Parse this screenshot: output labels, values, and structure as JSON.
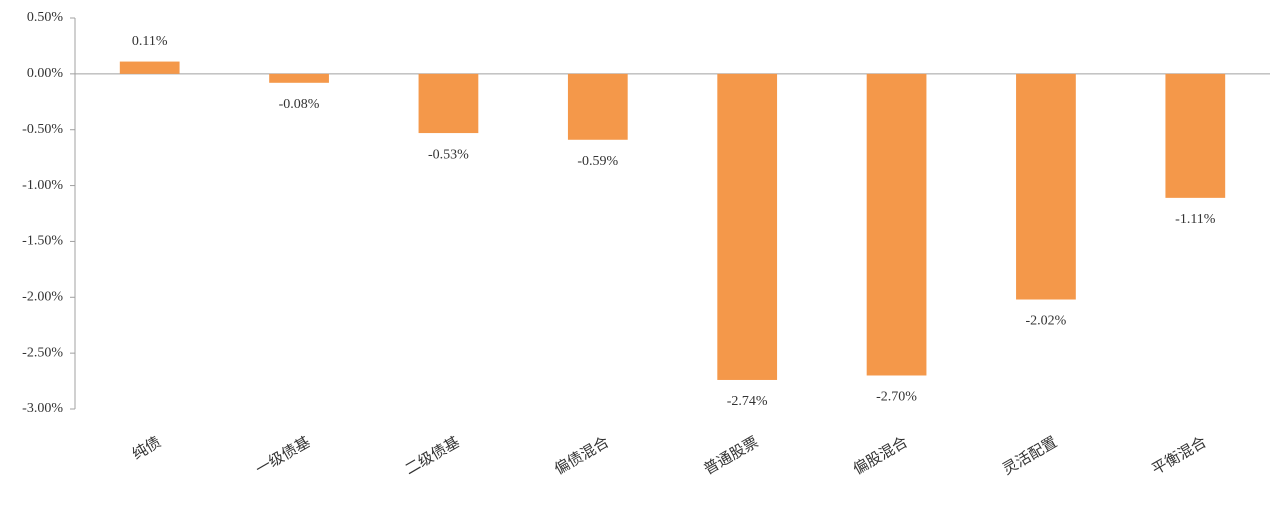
{
  "chart_data": {
    "type": "bar",
    "categories": [
      "纯债",
      "一级债基",
      "二级债基",
      "偏债混合",
      "普通股票",
      "偏股混合",
      "灵活配置",
      "平衡混合"
    ],
    "values": [
      0.11,
      -0.08,
      -0.53,
      -0.59,
      -2.74,
      -2.7,
      -2.02,
      -1.11
    ],
    "value_labels": [
      "0.11%",
      "-0.08%",
      "-0.53%",
      "-0.59%",
      "-2.74%",
      "-2.70%",
      "-2.02%",
      "-1.11%"
    ],
    "color": "#f4984a",
    "ylim": [
      0.5,
      -3.0
    ],
    "yticks": [
      {
        "value": 0.5,
        "label": "0.50%"
      },
      {
        "value": 0,
        "label": "0.00%"
      },
      {
        "value": -0.5,
        "label": "-0.50%"
      },
      {
        "value": -1.0,
        "label": "-1.00%"
      },
      {
        "value": -1.5,
        "label": "-1.50%"
      },
      {
        "value": -2.0,
        "label": "-2.00%"
      },
      {
        "value": -2.5,
        "label": "-2.50%"
      },
      {
        "value": -3.0,
        "label": "-3.00%"
      }
    ],
    "grid": false
  }
}
